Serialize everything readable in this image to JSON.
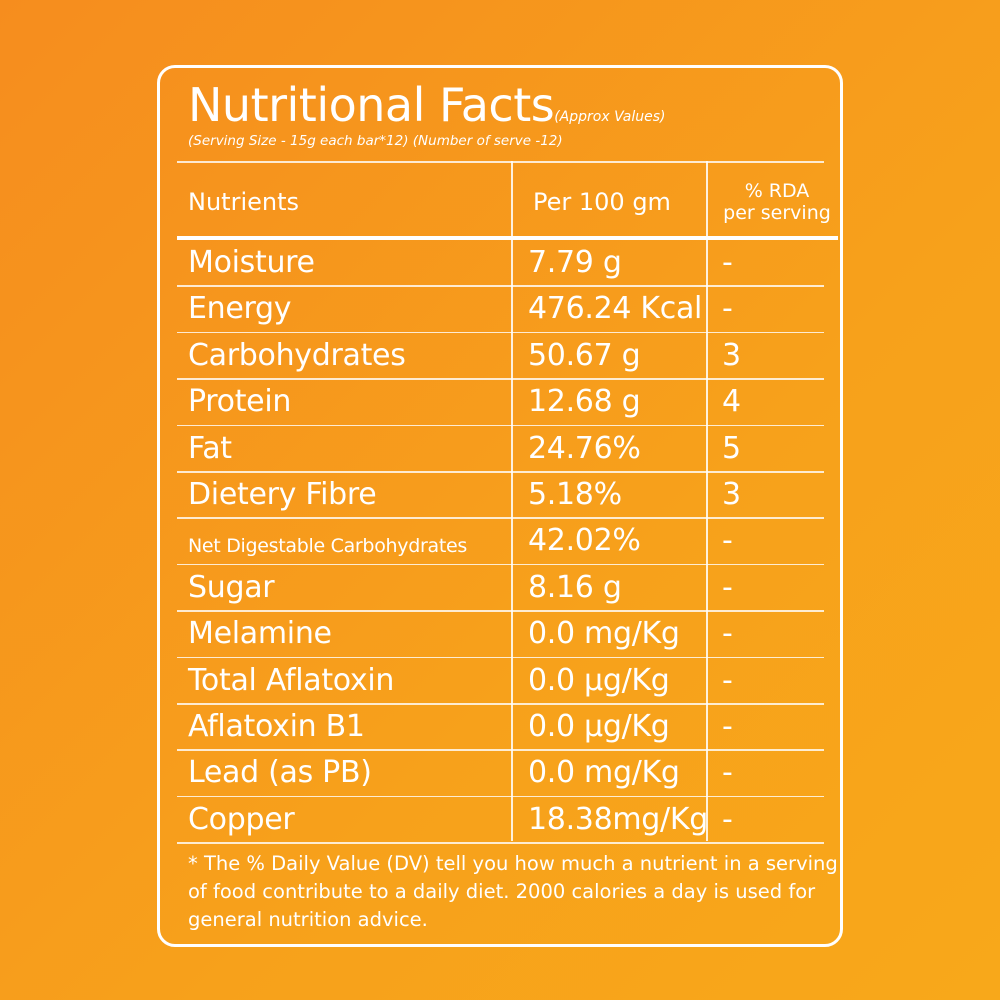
{
  "title": "Nutritional Facts",
  "title_note": "(Approx Values)",
  "serving_info": "(Serving Size - 15g each bar*12) (Number of serve -12)",
  "headers": {
    "nutrients": "Nutrients",
    "per100": "Per 100 gm",
    "rda_line1": "% RDA",
    "rda_line2": "per serving"
  },
  "rows": [
    {
      "nutrient": "Moisture",
      "value": "7.79 g",
      "rda": "-"
    },
    {
      "nutrient": "Energy",
      "value": "476.24 Kcal",
      "rda": "-"
    },
    {
      "nutrient": "Carbohydrates",
      "value": "50.67 g",
      "rda": "3"
    },
    {
      "nutrient": "Protein",
      "value": "12.68 g",
      "rda": "4"
    },
    {
      "nutrient": "Fat",
      "value": "24.76%",
      "rda": "5"
    },
    {
      "nutrient": "Dietery Fibre",
      "value": "5.18%",
      "rda": "3"
    },
    {
      "nutrient": "Net Digestable Carbohydrates",
      "value": "42.02%",
      "rda": "-"
    },
    {
      "nutrient": "Sugar",
      "value": "8.16 g",
      "rda": "-"
    },
    {
      "nutrient": "Melamine",
      "value": "0.0 mg/Kg",
      "rda": "-"
    },
    {
      "nutrient": "Total Aflatoxin",
      "value": "0.0 µg/Kg",
      "rda": "-"
    },
    {
      "nutrient": "Aflatoxin B1",
      "value": "0.0 µg/Kg",
      "rda": "-"
    },
    {
      "nutrient": "Lead (as PB)",
      "value": "0.0 mg/Kg",
      "rda": "-"
    },
    {
      "nutrient": "Copper",
      "value": "18.38mg/Kg",
      "rda": "-"
    }
  ],
  "footnote": "*    The % Daily Value (DV) tell you how much a nutrient in a serving of food contribute to a daily diet. 2000 calories a day is used for general nutrition advice.",
  "colors": {
    "background_start": "#f68d1e",
    "background_end": "#f8a81a",
    "foreground": "#ffffff"
  }
}
